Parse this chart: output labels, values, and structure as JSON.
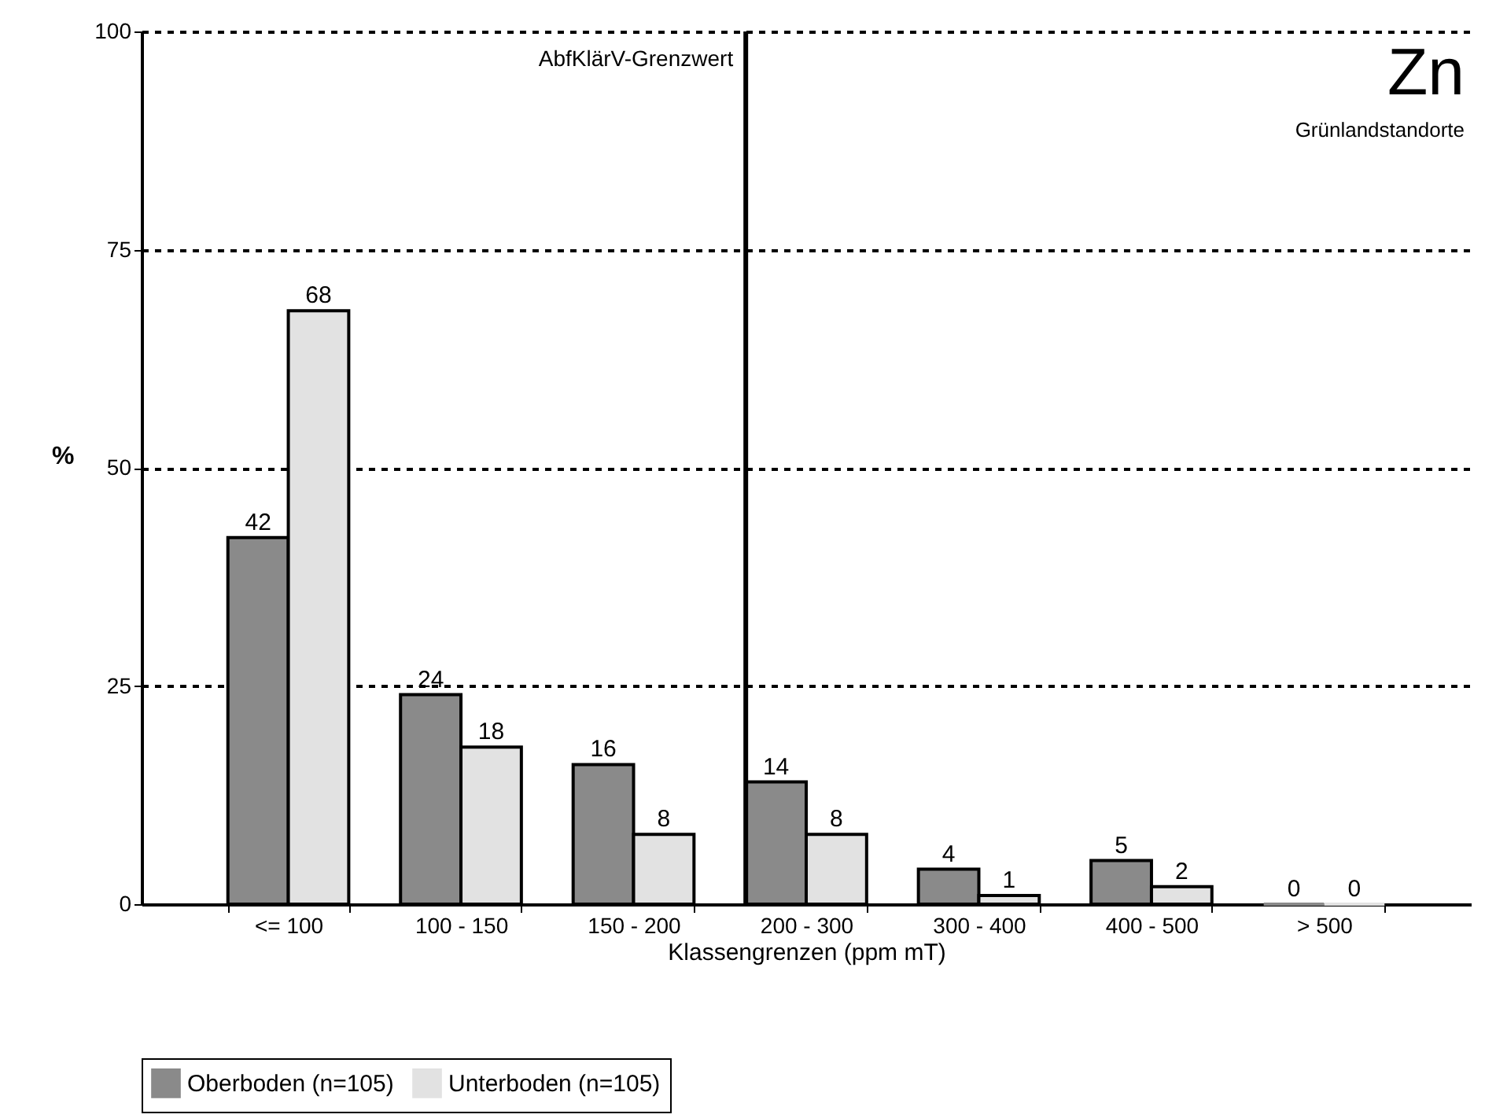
{
  "chart_data": {
    "type": "bar",
    "title": "Zn",
    "subtitle": "Grünlandstandorte",
    "xlabel": "Klassengrenzen (ppm mT)",
    "ylabel": "%",
    "categories": [
      "<= 100",
      "100 - 150",
      "150 - 200",
      "200 - 300",
      "300 - 400",
      "400 - 500",
      "> 500"
    ],
    "series": [
      {
        "name": "Oberboden (n=105)",
        "color": "#8a8a8a",
        "values": [
          42,
          24,
          16,
          14,
          4,
          5,
          0
        ]
      },
      {
        "name": "Unterboden (n=105)",
        "color": "#e2e2e2",
        "values": [
          68,
          18,
          8,
          8,
          1,
          2,
          0
        ]
      }
    ],
    "ylim": [
      0,
      100
    ],
    "yticks": [
      0,
      25,
      50,
      75,
      100
    ],
    "grid": "y",
    "legend": "bottom",
    "data_labels": true,
    "ref_lines": [
      {
        "axis": "x",
        "value": "200 - 300",
        "label": "AbfKlärV-Grenzwert",
        "color": "#000000"
      }
    ]
  }
}
